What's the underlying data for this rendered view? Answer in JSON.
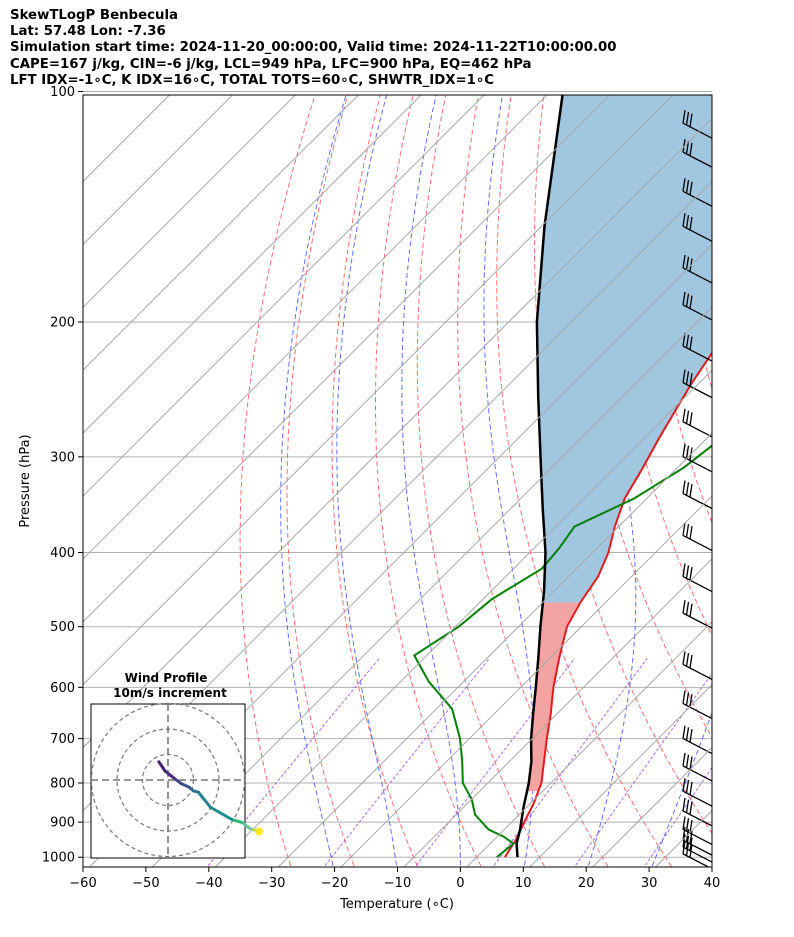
{
  "header": {
    "line1": "SkewTLogP Benbecula",
    "line2": "Lat: 57.48   Lon: -7.36",
    "line3": "Simulation start time: 2024-11-20_00:00:00, Valid time: 2024-11-22T10:00:00.00",
    "line4": "CAPE=167 j/kg, CIN=-6 j/kg, LCL=949 hPa, LFC=900 hPa, EQ=462 hPa",
    "line5": "LFT IDX=-1∘C, K IDX=16∘C, TOTAL TOTS=60∘C, SHWTR_IDX=1∘C"
  },
  "chart_data": {
    "type": "line",
    "title": "SkewTLogP Benbecula",
    "xlabel": "Temperature (∘C)",
    "ylabel": "Pressure (hPa)",
    "xlim": [
      -60,
      40
    ],
    "ylim": [
      1050,
      100
    ],
    "yscale": "log",
    "x_ticks": [
      -60,
      -50,
      -40,
      -30,
      -20,
      -10,
      0,
      10,
      20,
      30,
      40
    ],
    "y_ticks": [
      1000,
      900,
      800,
      700,
      600,
      500,
      400,
      300,
      200,
      100
    ],
    "grid": true,
    "series": [
      {
        "role": "temperature",
        "color": "#e41a1c",
        "points": [
          [
            4.5,
            1000
          ],
          [
            3.5,
            950
          ],
          [
            2.0,
            900
          ],
          [
            0.5,
            850
          ],
          [
            -1.5,
            800
          ],
          [
            -4.5,
            750
          ],
          [
            -7.7,
            700
          ],
          [
            -11.0,
            650
          ],
          [
            -14.8,
            600
          ],
          [
            -18.5,
            550
          ],
          [
            -22.3,
            500
          ],
          [
            -24.0,
            465
          ],
          [
            -25.3,
            430
          ],
          [
            -27.5,
            400
          ],
          [
            -30.6,
            370
          ],
          [
            -33.5,
            340
          ],
          [
            -35.5,
            310
          ],
          [
            -37.5,
            285
          ],
          [
            -39.5,
            260
          ],
          [
            -41.2,
            240
          ],
          [
            -42.7,
            220
          ],
          [
            -44.8,
            200
          ],
          [
            -46.0,
            180
          ],
          [
            -47.5,
            160
          ],
          [
            -51.5,
            140
          ],
          [
            -56.5,
            120
          ],
          [
            -59.5,
            110
          ],
          [
            -62.0,
            100
          ]
        ]
      },
      {
        "role": "dewpoint",
        "color": "#008000",
        "points": [
          [
            3.2,
            1000
          ],
          [
            3.7,
            960
          ],
          [
            1.0,
            940
          ],
          [
            -2.5,
            920
          ],
          [
            -7.0,
            880
          ],
          [
            -10.0,
            840
          ],
          [
            -14.0,
            800
          ],
          [
            -17.5,
            750
          ],
          [
            -21.5,
            700
          ],
          [
            -27.5,
            640
          ],
          [
            -35.5,
            590
          ],
          [
            -42.0,
            545
          ],
          [
            -39.5,
            500
          ],
          [
            -38.6,
            460
          ],
          [
            -35.5,
            420
          ],
          [
            -36.0,
            395
          ],
          [
            -37.0,
            370
          ],
          [
            -32.0,
            340
          ],
          [
            -29.0,
            310
          ],
          [
            -28.0,
            290
          ],
          [
            -30.0,
            260
          ],
          [
            -33.5,
            230
          ],
          [
            -37.0,
            200
          ],
          [
            -40.5,
            180
          ],
          [
            -44.0,
            160
          ],
          [
            -48.0,
            140
          ],
          [
            -52.5,
            120
          ],
          [
            -58.5,
            100
          ]
        ]
      },
      {
        "role": "parcel",
        "color": "#000000",
        "points": [
          [
            6.5,
            1000
          ],
          [
            4.2,
            960
          ],
          [
            2.5,
            920
          ],
          [
            -0.5,
            860
          ],
          [
            -3.5,
            800
          ],
          [
            -6.5,
            750
          ],
          [
            -10.2,
            700
          ],
          [
            -13.8,
            650
          ],
          [
            -17.6,
            600
          ],
          [
            -21.8,
            550
          ],
          [
            -26.5,
            500
          ],
          [
            -31.5,
            450
          ],
          [
            -37.5,
            400
          ],
          [
            -45.0,
            350
          ],
          [
            -53.5,
            300
          ],
          [
            -63.5,
            250
          ],
          [
            -75.5,
            200
          ],
          [
            -89.5,
            150
          ],
          [
            -108.0,
            100
          ]
        ]
      }
    ],
    "wind_barbs_levels_hPa": [
      990,
      970,
      950,
      920,
      870,
      820,
      760,
      700,
      630,
      560,
      480,
      430,
      380,
      335,
      300,
      270,
      240,
      215,
      190,
      170,
      150,
      135,
      120,
      110
    ],
    "inset": {
      "title": "Wind Profile",
      "subtitle": "10m/s increment",
      "rings": 3,
      "hodograph": [
        [
          15.0,
          -8.5
        ],
        [
          13.5,
          -8.0
        ],
        [
          12.2,
          -7.0
        ],
        [
          10.5,
          -6.5
        ],
        [
          7.0,
          -4.5
        ],
        [
          5.0,
          -2.0
        ],
        [
          4.2,
          -1.8
        ],
        [
          3.5,
          -1.2
        ],
        [
          2.2,
          -0.6
        ],
        [
          1.0,
          0.3
        ],
        [
          -0.5,
          1.5
        ],
        [
          -1.5,
          3.0
        ]
      ]
    }
  }
}
